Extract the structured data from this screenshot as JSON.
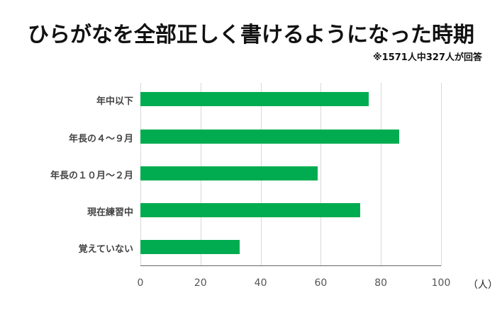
{
  "title": "ひらがなを全部正しく書けるようになった時期",
  "subtitle": "※1571人中327人が回答",
  "chart_data": {
    "type": "bar",
    "orientation": "horizontal",
    "title": "ひらがなを全部正しく書けるようになった時期",
    "subtitle": "※1571人中327人が回答",
    "categories": [
      "年中以下",
      "年長の４～９月",
      "年長の１０月～２月",
      "現在練習中",
      "覚えていない"
    ],
    "values": [
      76,
      86,
      59,
      73,
      33
    ],
    "xlabel": "（人）",
    "ylabel": "",
    "xlim": [
      0,
      100
    ],
    "xticks": [
      "0",
      "20",
      "40",
      "60",
      "80",
      "100"
    ],
    "grid": true,
    "legend": null,
    "bar_color": "#00ac4f"
  },
  "unit_label": "（人）"
}
